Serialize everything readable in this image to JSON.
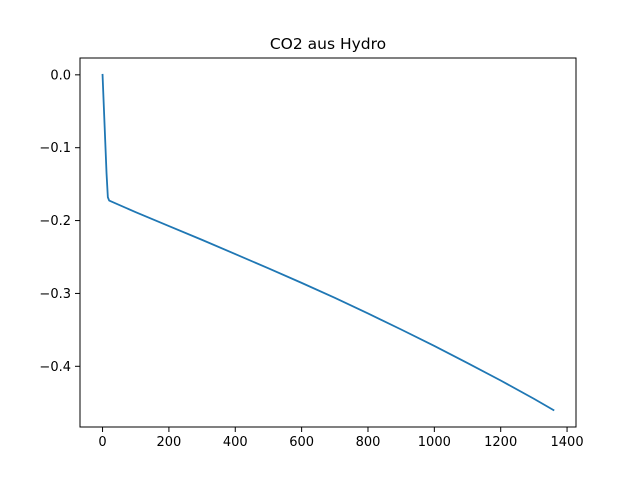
{
  "chart_data": {
    "type": "line",
    "title": "CO2 aus Hydro",
    "xlabel": "",
    "ylabel": "",
    "xlim": [
      -67.95,
      1426.95
    ],
    "ylim": [
      -0.4833,
      0.0231
    ],
    "xticks": [
      0,
      200,
      400,
      600,
      800,
      1000,
      1200,
      1400
    ],
    "xtick_labels": [
      "0",
      "200",
      "400",
      "600",
      "800",
      "1000",
      "1200",
      "1400"
    ],
    "yticks": [
      0.0,
      -0.1,
      -0.2,
      -0.3,
      -0.4
    ],
    "ytick_labels": [
      "0.0",
      "−0.1",
      "−0.2",
      "−0.3",
      "−0.4"
    ],
    "grid": false,
    "series": [
      {
        "color": "#1f77b4",
        "x": [
          0,
          4,
          8,
          12,
          16,
          20,
          100,
          200,
          300,
          400,
          500,
          600,
          700,
          800,
          900,
          1000,
          1100,
          1200,
          1300,
          1359
        ],
        "y": [
          0.0,
          -0.045,
          -0.09,
          -0.135,
          -0.168,
          -0.1725,
          -0.1885,
          -0.2075,
          -0.2265,
          -0.246,
          -0.2655,
          -0.2855,
          -0.306,
          -0.3275,
          -0.3495,
          -0.372,
          -0.3955,
          -0.4195,
          -0.4445,
          -0.46
        ]
      }
    ]
  }
}
